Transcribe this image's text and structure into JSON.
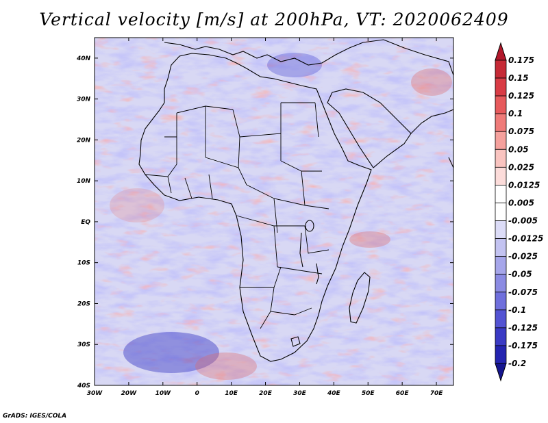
{
  "title": "Vertical velocity [m/s] at 200hPa, VT: 2020062409",
  "footer": "GrADS: IGES/COLA",
  "map": {
    "type": "contour-fill-map",
    "field": "vertical velocity",
    "lon_ticks": [
      "30W",
      "20W",
      "10W",
      "0",
      "10E",
      "20E",
      "30E",
      "40E",
      "50E",
      "60E",
      "70E"
    ],
    "lat_ticks": [
      "40N",
      "30N",
      "20N",
      "10N",
      "EQ",
      "10S",
      "20S",
      "30S",
      "40S"
    ],
    "lon_range": [
      -30,
      75
    ],
    "lat_range": [
      -40,
      45
    ]
  },
  "colorbar": {
    "levels": [
      "0.175",
      "0.15",
      "0.125",
      "0.1",
      "0.075",
      "0.05",
      "0.025",
      "0.0125",
      "0.005",
      "-0.005",
      "-0.0125",
      "-0.025",
      "-0.05",
      "-0.075",
      "-0.1",
      "-0.125",
      "-0.175",
      "-0.2"
    ],
    "colors": [
      "#b2182b",
      "#c62a36",
      "#d93c45",
      "#e75a5c",
      "#ef7b79",
      "#f5a19d",
      "#f9c4c0",
      "#fcdcda",
      "#ffffff",
      "#ffffff",
      "#dcdcf7",
      "#c3c3f1",
      "#a6a6ea",
      "#8b8be3",
      "#6f6fdc",
      "#5353d3",
      "#3a3ac4",
      "#2424b0",
      "#15158e"
    ]
  },
  "colors": {
    "upward": "#e06666",
    "downward": "#6a6ae0",
    "coastline": "#000000"
  }
}
